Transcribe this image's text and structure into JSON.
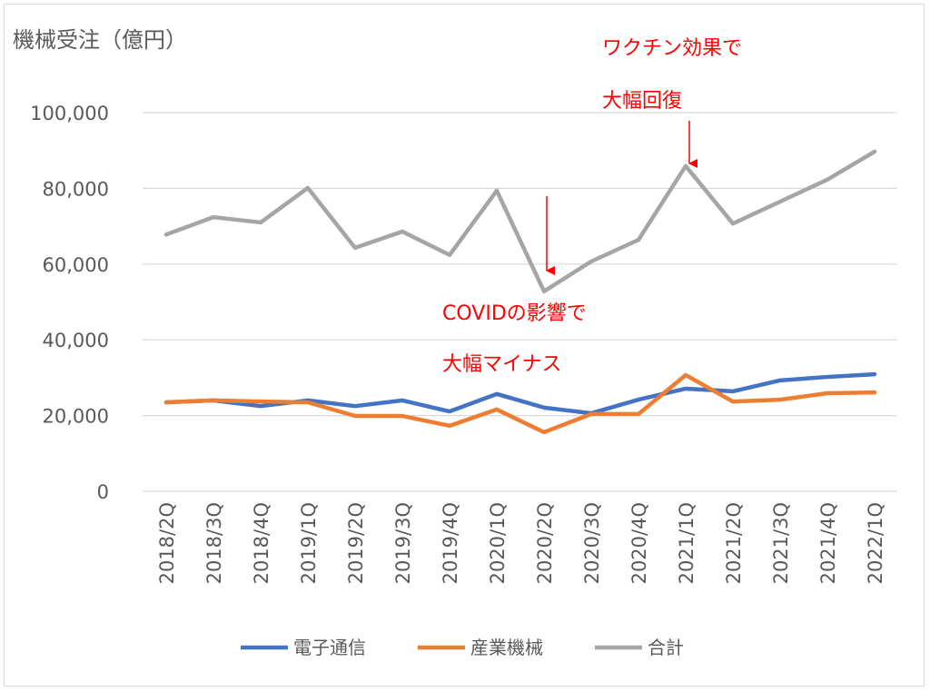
{
  "chart_data": {
    "type": "line",
    "title": "機械受注（億円）",
    "xlabel": "",
    "ylabel": "機械受注（億円）",
    "ylim": [
      0,
      100000
    ],
    "yticks": [
      0,
      20000,
      40000,
      60000,
      80000,
      100000
    ],
    "ytick_labels": [
      "0",
      "20,000",
      "40,000",
      "60,000",
      "80,000",
      "100,000"
    ],
    "grid": true,
    "legend_position": "bottom",
    "categories": [
      "2018/2Q",
      "2018/3Q",
      "2018/4Q",
      "2019/1Q",
      "2019/2Q",
      "2019/3Q",
      "2019/4Q",
      "2020/1Q",
      "2020/2Q",
      "2020/3Q",
      "2020/4Q",
      "2021/1Q",
      "2021/2Q",
      "2021/3Q",
      "2021/4Q",
      "2022/1Q"
    ],
    "series": [
      {
        "name": "電子通信",
        "color": "#4472c4",
        "values": [
          23500,
          24000,
          22500,
          24000,
          22500,
          24000,
          21100,
          25700,
          22100,
          20600,
          24200,
          27100,
          26400,
          29300,
          30200,
          30900
        ]
      },
      {
        "name": "産業機械",
        "color": "#ed7d31",
        "values": [
          23500,
          24000,
          23700,
          23500,
          19900,
          19900,
          17300,
          21600,
          15600,
          20400,
          20400,
          30700,
          23700,
          24200,
          25900,
          26100
        ]
      },
      {
        "name": "合計",
        "color": "#a5a5a5",
        "values": [
          67800,
          72400,
          71000,
          80100,
          64300,
          68600,
          62400,
          79400,
          52800,
          60700,
          66400,
          85900,
          70700,
          76500,
          82300,
          89700
        ]
      }
    ],
    "annotations": [
      {
        "lines": [
          "ワクチン効果で",
          "大幅回復"
        ],
        "category": "2021/1Q",
        "color": "#ff0000"
      },
      {
        "lines": [
          "COVIDの影響で",
          "大幅マイナス"
        ],
        "category": "2020/2Q",
        "color": "#ff0000"
      }
    ]
  }
}
